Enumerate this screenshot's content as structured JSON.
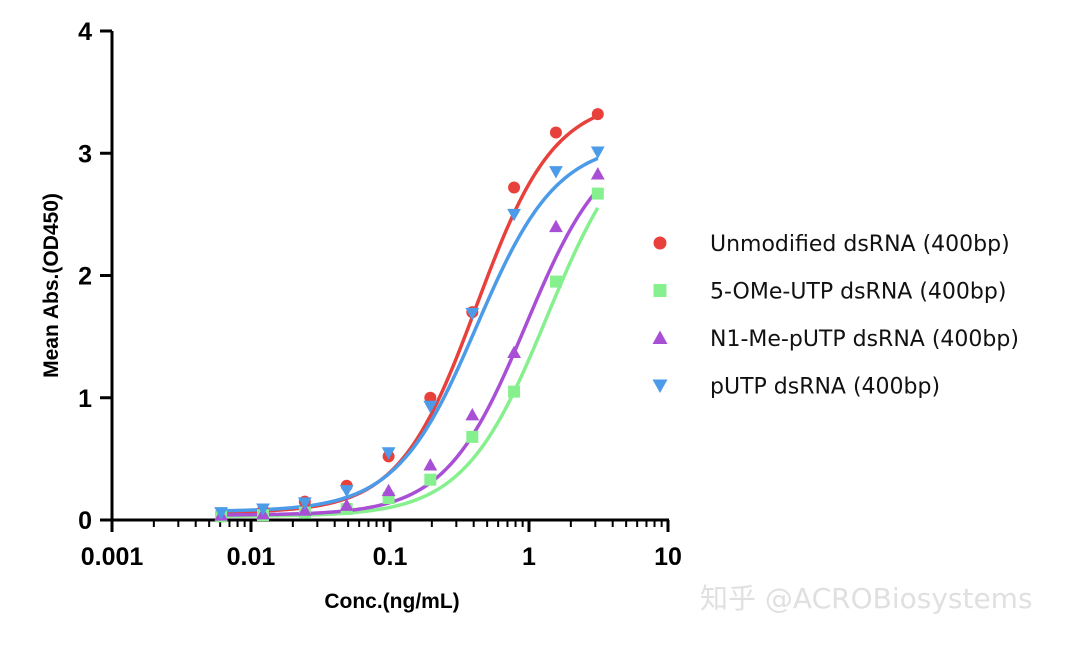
{
  "chart_data": {
    "type": "scatter",
    "title": "",
    "xlabel": "Conc.(ng/mL)",
    "ylabel": "Mean Abs.(OD450)",
    "xscale": "log",
    "xlim": [
      0.001,
      10
    ],
    "ylim": [
      0,
      4
    ],
    "x_ticks": [
      0.001,
      0.01,
      0.1,
      1,
      10
    ],
    "x_tick_labels": [
      "0.001",
      "0.01",
      "0.1",
      "1",
      "10"
    ],
    "y_ticks": [
      0,
      1,
      2,
      3,
      4
    ],
    "y_tick_labels": [
      "0",
      "1",
      "2",
      "3",
      "4"
    ],
    "grid": false,
    "legend_position": "right",
    "x": [
      0.0061,
      0.0122,
      0.0244,
      0.0488,
      0.0977,
      0.195,
      0.391,
      0.781,
      1.5625,
      3.125
    ],
    "series": [
      {
        "name": "Unmodified dsRNA (400bp)",
        "marker": "circle",
        "color": "#e8413c",
        "values": [
          0.05,
          0.08,
          0.15,
          0.28,
          0.52,
          1.0,
          1.7,
          2.72,
          3.17,
          3.32
        ],
        "fit": {
          "bottom": 0.06,
          "top": 3.45,
          "ec50": 0.42,
          "hill": 1.55
        }
      },
      {
        "name": "5-OMe-UTP dsRNA (400bp)",
        "marker": "square",
        "color": "#86f08e",
        "values": [
          0.03,
          0.04,
          0.06,
          0.09,
          0.18,
          0.33,
          0.68,
          1.05,
          1.95,
          2.67
        ],
        "fit": {
          "bottom": 0.03,
          "top": 3.3,
          "ec50": 1.35,
          "hill": 1.45
        }
      },
      {
        "name": "N1-Me-pUTP dsRNA (400bp)",
        "marker": "triangle-up",
        "color": "#a94fd6",
        "values": [
          0.04,
          0.05,
          0.08,
          0.12,
          0.24,
          0.45,
          0.86,
          1.37,
          2.4,
          2.83
        ],
        "fit": {
          "bottom": 0.04,
          "top": 3.15,
          "ec50": 0.95,
          "hill": 1.5
        }
      },
      {
        "name": "pUTP dsRNA (400bp)",
        "marker": "triangle-down",
        "color": "#4b9be8",
        "values": [
          0.06,
          0.09,
          0.14,
          0.24,
          0.55,
          0.93,
          1.69,
          2.5,
          2.85,
          3.01
        ],
        "fit": {
          "bottom": 0.07,
          "top": 3.1,
          "ec50": 0.42,
          "hill": 1.5
        }
      }
    ]
  },
  "watermark": "知乎 @ACROBiosystems"
}
